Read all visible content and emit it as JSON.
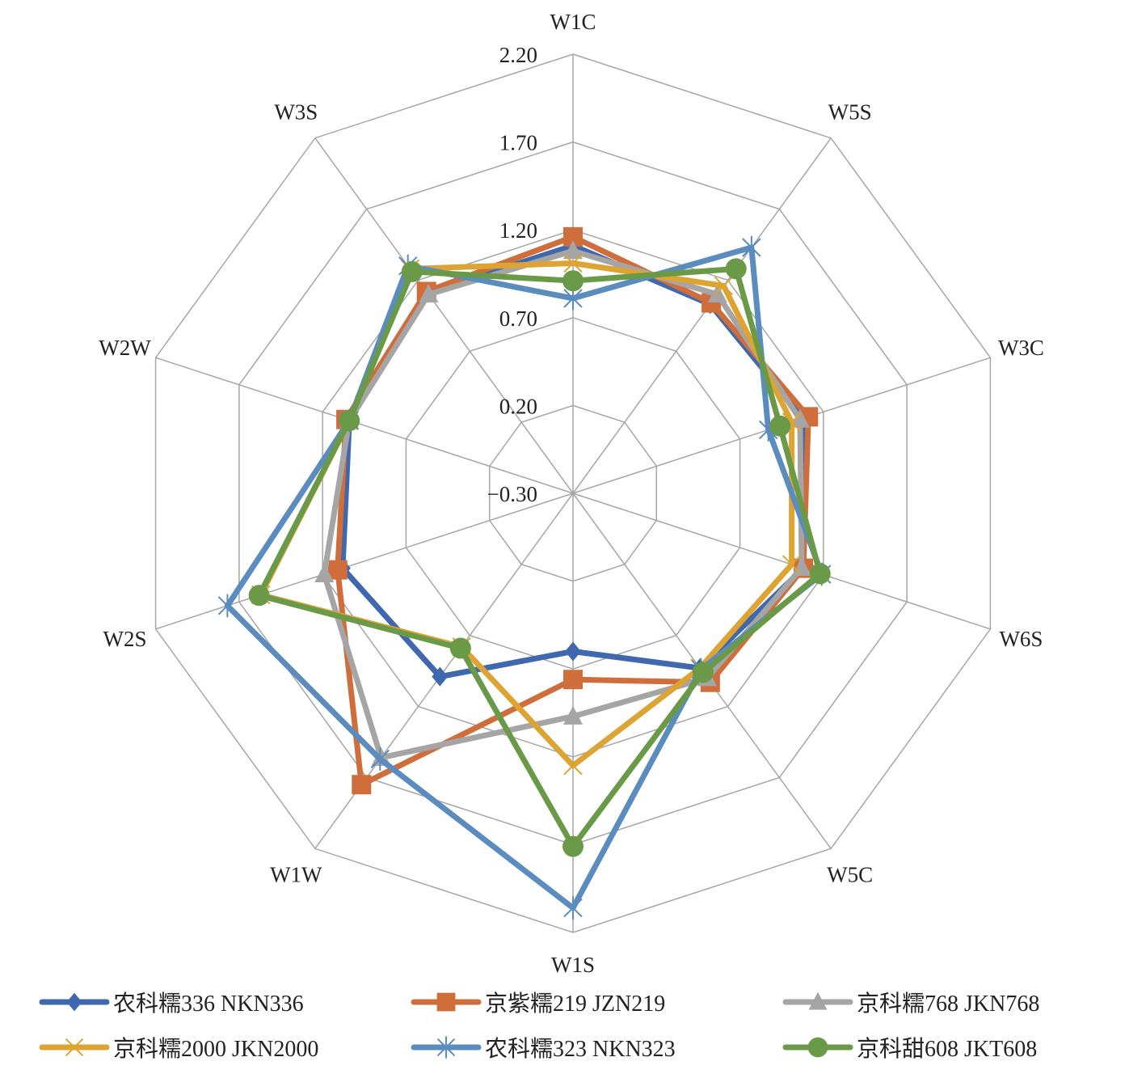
{
  "chart_data": {
    "type": "radar",
    "title": "",
    "axes": [
      "W1C",
      "W5S",
      "W3C",
      "W6S",
      "W5C",
      "W1S",
      "W1W",
      "W2S",
      "W2W",
      "W3S"
    ],
    "rlim": [
      -0.3,
      2.2
    ],
    "ticks": [
      "-0.30",
      "0.20",
      "0.70",
      "1.20",
      "1.70",
      "2.20"
    ],
    "tick_values": [
      -0.3,
      0.2,
      0.7,
      1.2,
      1.7,
      2.2
    ],
    "grid": true,
    "legend_position": "bottom",
    "series": [
      {
        "name": "农科糯336 NKN336",
        "color": "#4068AE",
        "marker": "diamond",
        "values": [
          1.11,
          1.03,
          1.08,
          1.08,
          0.93,
          0.6,
          0.99,
          1.08,
          1.04,
          1.11
        ]
      },
      {
        "name": "京紫糯219 JZN219",
        "color": "#CF6E3B",
        "marker": "square",
        "values": [
          1.16,
          1.04,
          1.11,
          1.08,
          1.03,
          0.76,
          1.75,
          1.11,
          1.06,
          1.12
        ]
      },
      {
        "name": "京科糯768 JKN768",
        "color": "#A5A5A5",
        "marker": "triangle",
        "values": [
          1.08,
          1.1,
          1.06,
          1.07,
          1.0,
          0.97,
          1.56,
          1.19,
          1.04,
          1.1
        ]
      },
      {
        "name": "京科糯2000 JKN2000",
        "color": "#DDA433",
        "marker": "x",
        "values": [
          1.01,
          1.16,
          1.01,
          1.01,
          0.93,
          1.25,
          0.78,
          1.57,
          1.04,
          1.28
        ]
      },
      {
        "name": "农科糯323 NKN323",
        "color": "#5A8CBF",
        "marker": "star",
        "values": [
          0.81,
          1.43,
          0.87,
          1.19,
          0.94,
          2.06,
          1.57,
          1.77,
          1.04,
          1.3
        ]
      },
      {
        "name": "京科甜608 JKT608",
        "color": "#6A9A47",
        "marker": "circle",
        "values": [
          0.91,
          1.28,
          0.94,
          1.18,
          0.96,
          1.71,
          0.79,
          1.58,
          1.04,
          1.26
        ]
      }
    ]
  }
}
